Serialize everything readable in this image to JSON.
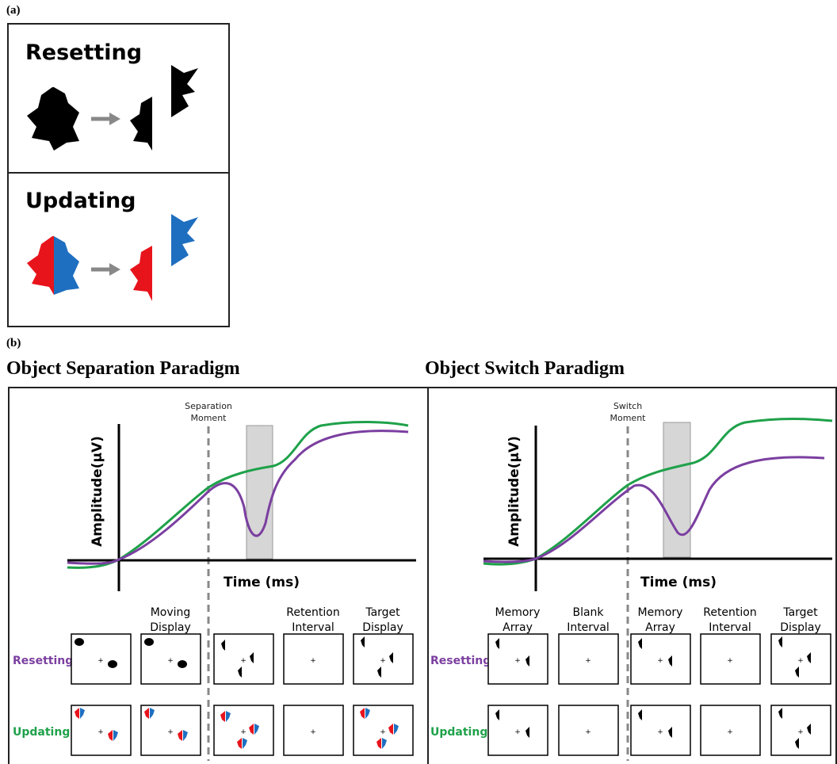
{
  "panel_a": {
    "label": "(a)",
    "resetting": "Resetting",
    "updating": "Updating"
  },
  "panel_b": {
    "label": "(b)",
    "paradigms": [
      {
        "title": "Object Separation Paradigm",
        "moment": [
          "Separation",
          "Moment"
        ],
        "y_axis": "Amplitude(μV)",
        "x_axis": "Time (ms)",
        "columns": [
          null,
          [
            "Moving",
            "Display"
          ],
          null,
          [
            "Retention",
            "Interval"
          ],
          [
            "Target",
            "Display"
          ]
        ],
        "rows": [
          "Resetting",
          "Updating"
        ]
      },
      {
        "title": "Object Switch Paradigm",
        "moment": [
          "Switch",
          "Moment"
        ],
        "y_axis": "Amplitude(μV)",
        "x_axis": "Time (ms)",
        "columns": [
          [
            "Memory",
            "Array"
          ],
          [
            "Blank",
            "Interval"
          ],
          [
            "Memory",
            "Array"
          ],
          [
            "Retention",
            "Interval"
          ],
          [
            "Target",
            "Display"
          ]
        ],
        "rows": [
          "Resetting",
          "Updating"
        ]
      }
    ]
  }
}
